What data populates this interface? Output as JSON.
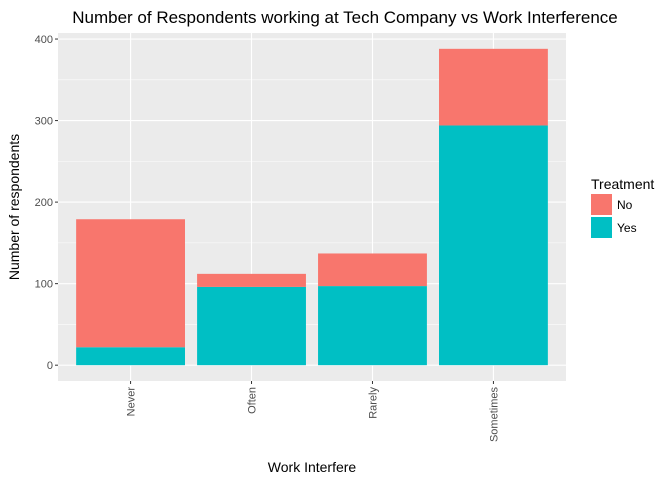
{
  "chart_data": {
    "type": "bar",
    "stacked": true,
    "title": "Number of Respondents working at Tech Company vs Work Interference",
    "xlabel": "Work Interfere",
    "ylabel": "Number of respondents",
    "categories": [
      "Never",
      "Often",
      "Rarely",
      "Sometimes"
    ],
    "series": [
      {
        "name": "Yes",
        "color": "#00bfc4",
        "values": [
          22,
          96,
          97,
          294
        ]
      },
      {
        "name": "No",
        "color": "#f8766d",
        "values": [
          157,
          16,
          40,
          94
        ]
      }
    ],
    "ylim": [
      -19.4,
      407.4
    ],
    "yticks": [
      0,
      100,
      200,
      300,
      400
    ],
    "grid": true,
    "legend": {
      "title": "Treatment",
      "position": "right",
      "entries": [
        {
          "label": "No",
          "color": "#f8766d"
        },
        {
          "label": "Yes",
          "color": "#00bfc4"
        }
      ]
    },
    "panel_background": "#ebebeb",
    "grid_color": "#ffffff"
  }
}
